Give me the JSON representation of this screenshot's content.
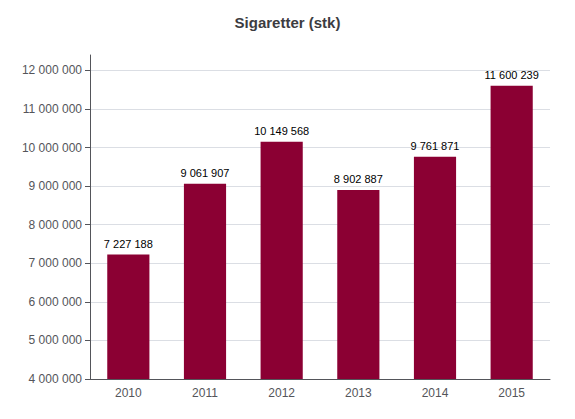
{
  "chart_data": {
    "type": "bar",
    "title": "Sigaretter (stk)",
    "categories": [
      "2010",
      "2011",
      "2012",
      "2013",
      "2014",
      "2015"
    ],
    "values": [
      7227188,
      9061907,
      10149568,
      8902887,
      9761871,
      11600239
    ],
    "value_labels": [
      "7 227 188",
      "9 061 907",
      "10 149 568",
      "8 902 887",
      "9 761 871",
      "11 600 239"
    ],
    "color": "#8B0033",
    "ylim": [
      4000000,
      12400000
    ],
    "yticks": [
      {
        "value": 4000000,
        "label": "4 000 000"
      },
      {
        "value": 5000000,
        "label": "5 000 000"
      },
      {
        "value": 6000000,
        "label": "6 000 000"
      },
      {
        "value": 7000000,
        "label": "7 000 000"
      },
      {
        "value": 8000000,
        "label": "8 000 000"
      },
      {
        "value": 9000000,
        "label": "9 000 000"
      },
      {
        "value": 10000000,
        "label": "10 000 000"
      },
      {
        "value": 11000000,
        "label": "11 000 000"
      },
      {
        "value": 12000000,
        "label": "12 000 000"
      }
    ],
    "grid": true,
    "data_labels": true
  }
}
